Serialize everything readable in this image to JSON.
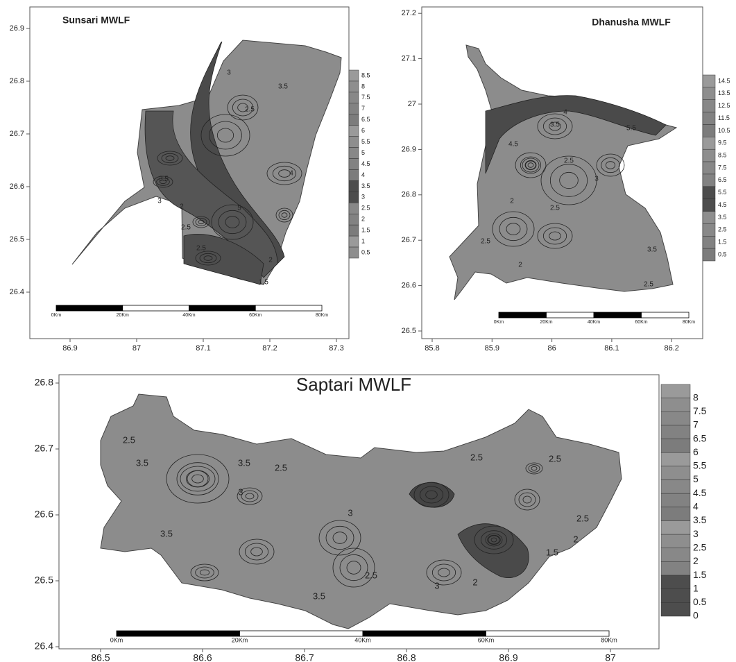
{
  "panels": [
    {
      "title": "Sunsari MWLF",
      "xticks": [
        86.9,
        87,
        87.1,
        87.2,
        87.3
      ],
      "yticks": [
        26.4,
        26.5,
        26.6,
        26.7,
        26.8,
        26.9
      ],
      "legend": [
        8.5,
        8,
        7.5,
        7,
        6.5,
        6,
        5.5,
        5,
        4.5,
        4,
        3.5,
        3,
        2.5,
        2,
        1.5,
        1,
        0.5
      ],
      "scalebar": [
        "0Km",
        "20Km",
        "40Km",
        "60Km",
        "80Km"
      ],
      "contour_labels": [
        "3.5",
        "2.5",
        "2",
        "3",
        "2.5",
        "3.5",
        "1.5",
        "2",
        "2.5",
        "5",
        "4",
        "3"
      ]
    },
    {
      "title": "Dhanusha MWLF",
      "xticks": [
        85.8,
        85.9,
        86,
        86.1,
        86.2
      ],
      "yticks": [
        26.5,
        26.6,
        26.7,
        26.8,
        26.9,
        27,
        27.1,
        27.2
      ],
      "legend": [
        14.5,
        13.5,
        12.5,
        11.5,
        10.5,
        9.5,
        8.5,
        7.5,
        6.5,
        5.5,
        4.5,
        3.5,
        2.5,
        1.5,
        0.5
      ],
      "scalebar": [
        "0Km",
        "20Km",
        "40Km",
        "60Km",
        "80Km"
      ],
      "contour_labels": [
        "4.5",
        "3.5",
        "2.5",
        "3",
        "2",
        "2.5",
        "2.5",
        "2",
        "3.5",
        "4",
        "5.5",
        "2.5"
      ]
    },
    {
      "title": "Saptari MWLF",
      "xticks": [
        86.5,
        86.6,
        86.7,
        86.8,
        86.9,
        87
      ],
      "yticks": [
        26.4,
        26.5,
        26.6,
        26.7,
        26.8
      ],
      "legend": [
        8,
        7.5,
        7,
        6.5,
        6,
        5.5,
        5,
        4.5,
        4,
        3.5,
        3,
        2.5,
        2,
        1.5,
        1,
        0.5,
        0
      ],
      "scalebar": [
        "0Km",
        "20Km",
        "40Km",
        "60Km",
        "80Km"
      ],
      "contour_labels": [
        "2.5",
        "3.5",
        "3.5",
        "2.5",
        "2.5",
        "2.5",
        "3",
        "3",
        "3.5",
        "2.5",
        "2",
        "1.5",
        "3",
        "3.5",
        "2.5",
        "2"
      ]
    }
  ]
}
